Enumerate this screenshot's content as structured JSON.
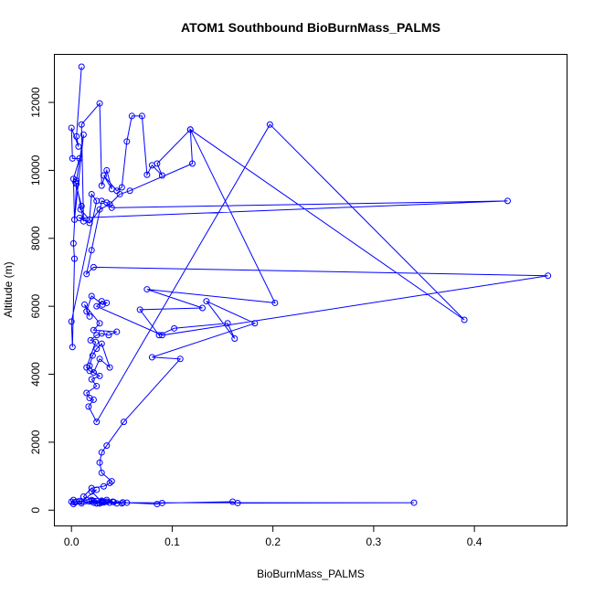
{
  "chart_data": {
    "type": "scatter",
    "title": "ATOM1 Southbound BioBurnMass_PALMS",
    "xlabel": "BioBurnMass_PALMS",
    "ylabel": "Altitude (m)",
    "xlim": [
      -0.0165,
      0.4915
    ],
    "ylim": [
      -450,
      13400
    ],
    "xticks": [
      0.0,
      0.1,
      0.2,
      0.3,
      0.4
    ],
    "xtick_labels": [
      "0.0",
      "0.1",
      "0.2",
      "0.3",
      "0.4"
    ],
    "yticks": [
      0,
      2000,
      4000,
      6000,
      8000,
      10000,
      12000
    ],
    "ytick_labels": [
      "0",
      "2000",
      "4000",
      "6000",
      "8000",
      "10000",
      "12000"
    ],
    "grid": false,
    "line_color": "#0000ff",
    "point_style": "open-circle",
    "connected": true,
    "x": [
      0.01,
      0.005,
      0.007,
      0.0,
      0.001,
      0.008,
      0.002,
      0.003,
      0.012,
      0.005,
      0.004,
      0.01,
      0.009,
      0.018,
      0.02,
      0.025,
      0.0,
      0.001,
      0.003,
      0.002,
      0.005,
      0.012,
      0.01,
      0.028,
      0.03,
      0.035,
      0.04,
      0.032,
      0.045,
      0.05,
      0.055,
      0.06,
      0.07,
      0.075,
      0.08,
      0.09,
      0.085,
      0.118,
      0.12,
      0.058,
      0.048,
      0.038,
      0.028,
      0.018,
      0.008,
      0.433,
      0.04,
      0.035,
      0.03,
      0.02,
      0.015,
      0.022,
      0.473,
      0.09,
      0.025,
      0.03,
      0.035,
      0.031,
      0.02,
      0.015,
      0.018,
      0.013,
      0.028,
      0.022,
      0.045,
      0.037,
      0.03,
      0.025,
      0.019,
      0.024,
      0.015,
      0.018,
      0.022,
      0.028,
      0.038,
      0.03,
      0.025,
      0.021,
      0.018,
      0.022,
      0.028,
      0.02,
      0.025,
      0.015,
      0.018,
      0.022,
      0.017,
      0.025,
      0.197,
      0.39,
      0.118,
      0.202,
      0.075,
      0.13,
      0.068,
      0.087,
      0.102,
      0.155,
      0.162,
      0.134,
      0.182,
      0.08,
      0.108,
      0.052,
      0.035,
      0.03,
      0.028,
      0.03,
      0.04,
      0.038,
      0.032,
      0.02,
      0.012,
      0.015,
      0.01,
      0.025,
      0.02,
      0.03,
      0.028,
      0.03,
      0.041,
      0.035,
      0.022,
      0.042,
      0.018,
      0.03,
      0.022,
      0.028,
      0.025,
      0.02,
      0.031,
      0.025,
      0.051,
      0.0,
      0.002,
      0.003,
      0.005,
      0.008,
      0.01,
      0.002,
      0.025,
      0.03,
      0.035,
      0.02,
      0.032,
      0.045,
      0.05,
      0.055,
      0.085,
      0.09,
      0.16,
      0.165,
      0.34,
      0.038
    ],
    "y": [
      13050,
      11000,
      10700,
      11250,
      10350,
      10350,
      9750,
      8550,
      11050,
      9700,
      9650,
      8950,
      8850,
      8550,
      9300,
      9100,
      5550,
      4800,
      7400,
      7850,
      9600,
      8500,
      11350,
      11970,
      9550,
      10000,
      9450,
      9850,
      9400,
      9500,
      10850,
      11600,
      11600,
      9870,
      10150,
      9850,
      10200,
      11200,
      10200,
      9400,
      9300,
      9000,
      8850,
      8450,
      8600,
      9100,
      8900,
      9050,
      9100,
      7650,
      6950,
      7150,
      6900,
      5150,
      6000,
      6150,
      6100,
      6050,
      6300,
      5850,
      5700,
      6050,
      5500,
      5300,
      5250,
      5150,
      5200,
      5150,
      5000,
      4950,
      4200,
      4100,
      4050,
      4450,
      4200,
      4900,
      4750,
      4550,
      4250,
      4050,
      3950,
      3850,
      3650,
      3450,
      3300,
      3250,
      3050,
      2600,
      11350,
      5600,
      11200,
      6100,
      6500,
      5950,
      5900,
      5150,
      5350,
      5500,
      5050,
      6150,
      5500,
      4500,
      4450,
      2600,
      1900,
      1700,
      1400,
      1100,
      850,
      800,
      700,
      650,
      400,
      300,
      250,
      600,
      550,
      250,
      200,
      230,
      250,
      300,
      270,
      240,
      260,
      280,
      220,
      200,
      270,
      300,
      250,
      200,
      230,
      250,
      300,
      230,
      250,
      270,
      200,
      180,
      200,
      230,
      250,
      270,
      230,
      200,
      200,
      220,
      180,
      210,
      250,
      210,
      220,
      220
    ]
  }
}
